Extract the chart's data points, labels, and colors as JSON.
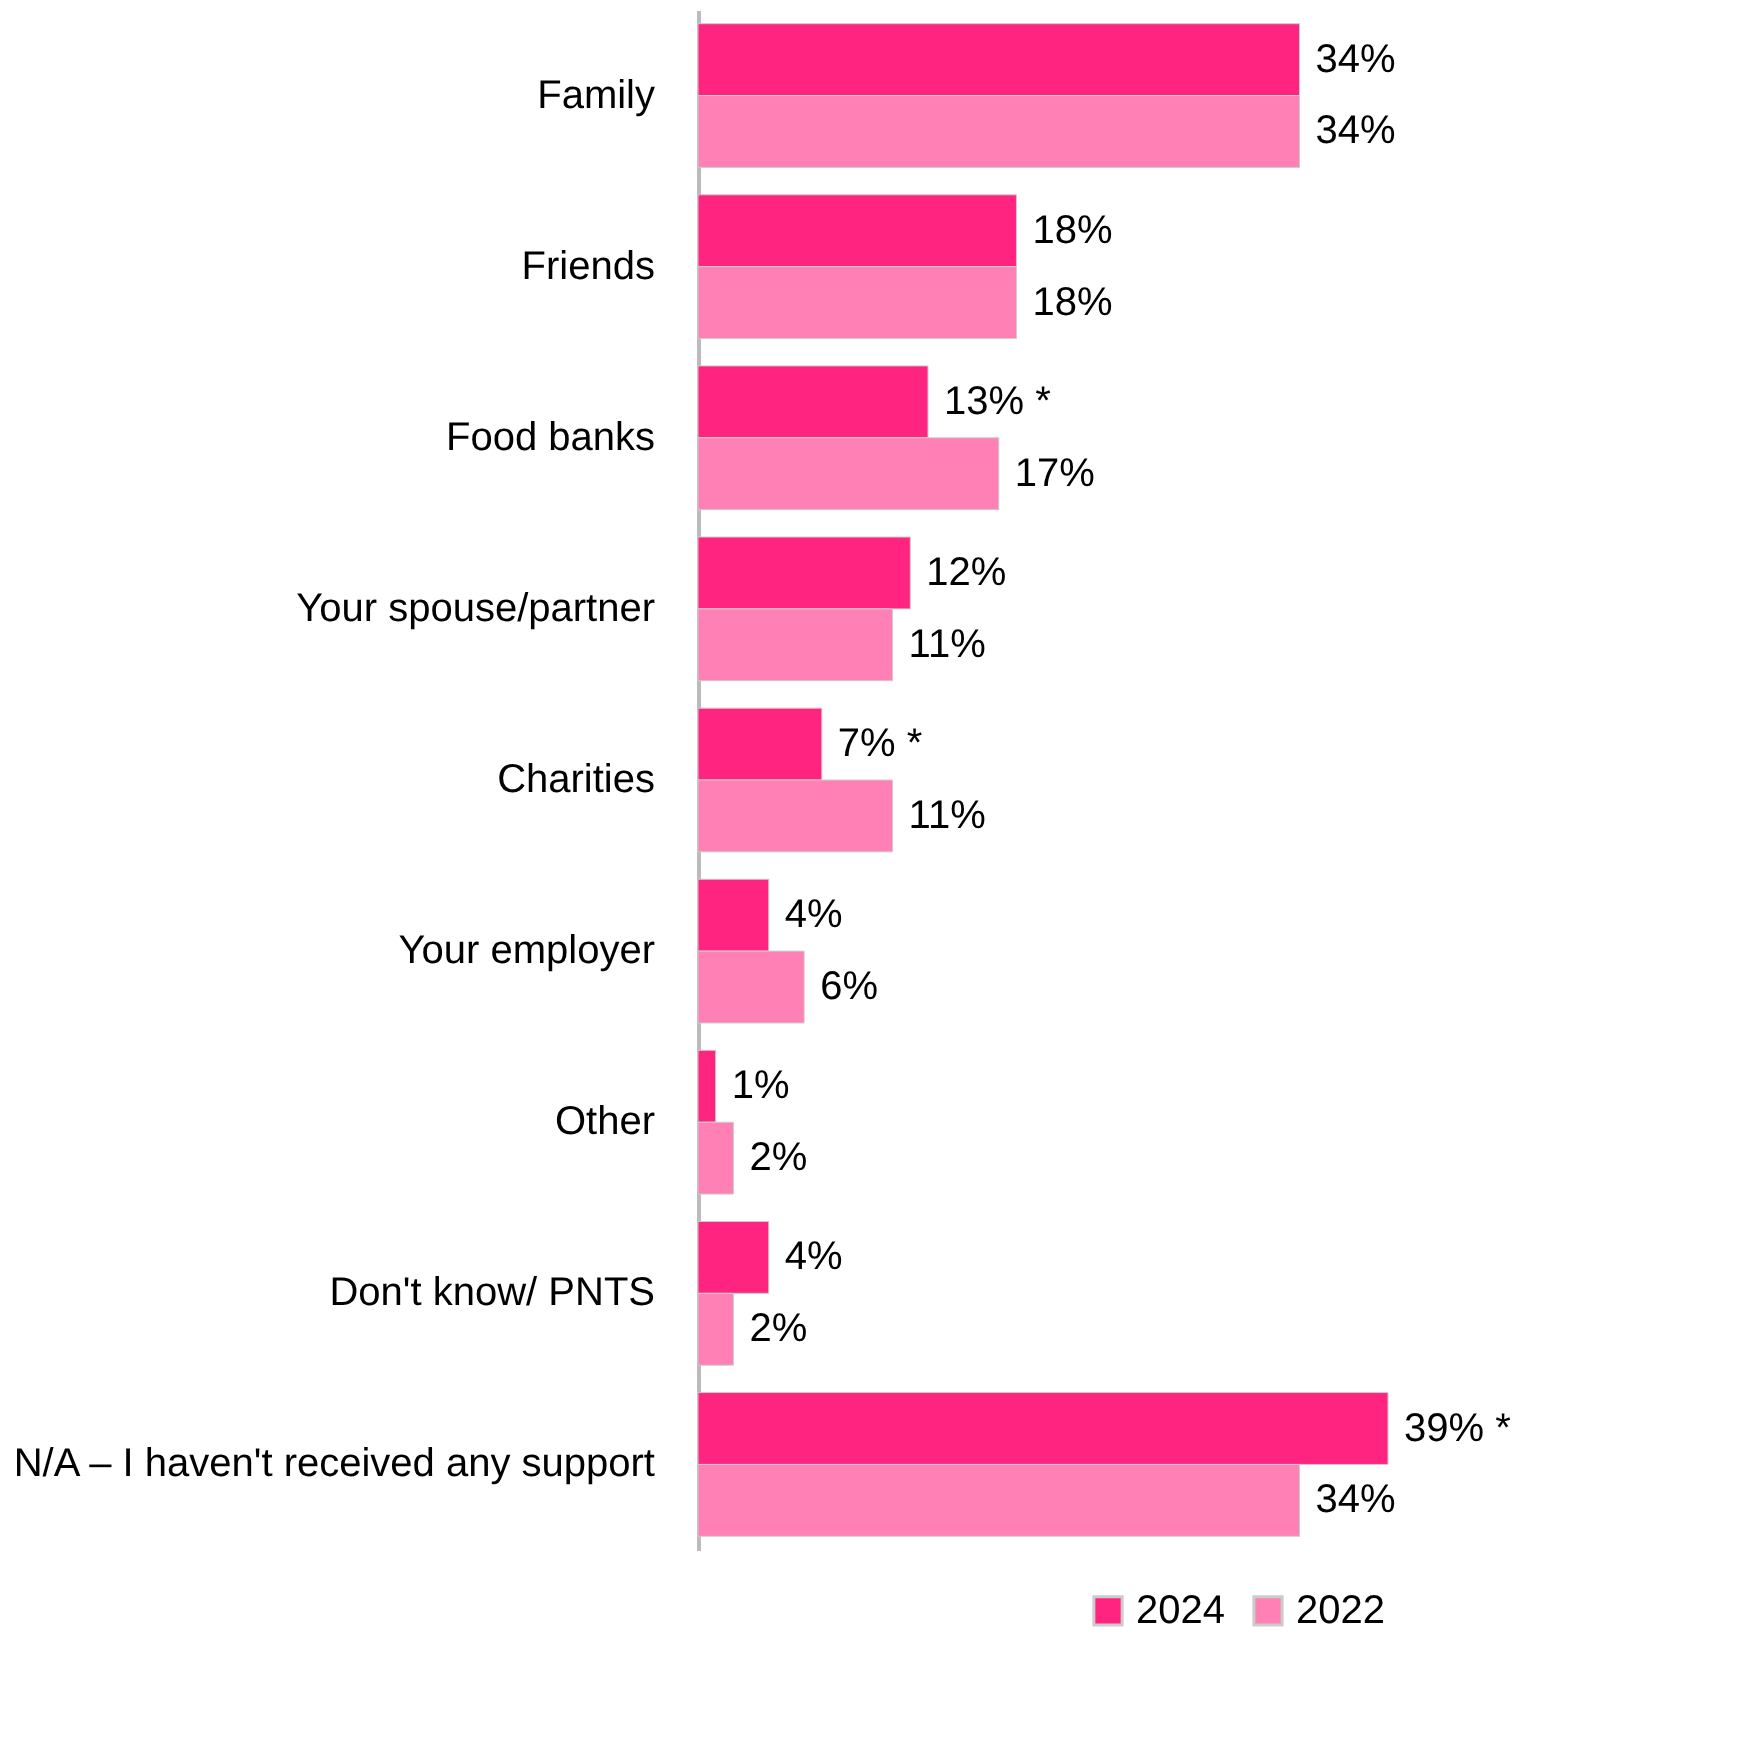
{
  "chart_data": {
    "type": "bar",
    "orientation": "horizontal",
    "categories": [
      "Family",
      "Friends",
      "Food banks",
      "Your spouse/partner",
      "Charities",
      "Your employer",
      "Other",
      "Don't know/ PNTS",
      "N/A – I haven't received any support"
    ],
    "series": [
      {
        "name": "2024",
        "color": "#ff2480",
        "values": [
          34,
          18,
          13,
          12,
          7,
          4,
          1,
          4,
          39
        ],
        "value_labels": [
          "34%",
          "18%",
          "13% *",
          "12%",
          "7% *",
          "4%",
          "1%",
          "4%",
          "39% *"
        ]
      },
      {
        "name": "2022",
        "color": "#ff80b4",
        "values": [
          34,
          18,
          17,
          11,
          11,
          6,
          2,
          2,
          34
        ],
        "value_labels": [
          "34%",
          "18%",
          "17%",
          "11%",
          "11%",
          "6%",
          "2%",
          "2%",
          "34%"
        ]
      }
    ],
    "xlim": [
      0,
      39
    ],
    "tick_labels": "y",
    "legend": "bottom right"
  }
}
